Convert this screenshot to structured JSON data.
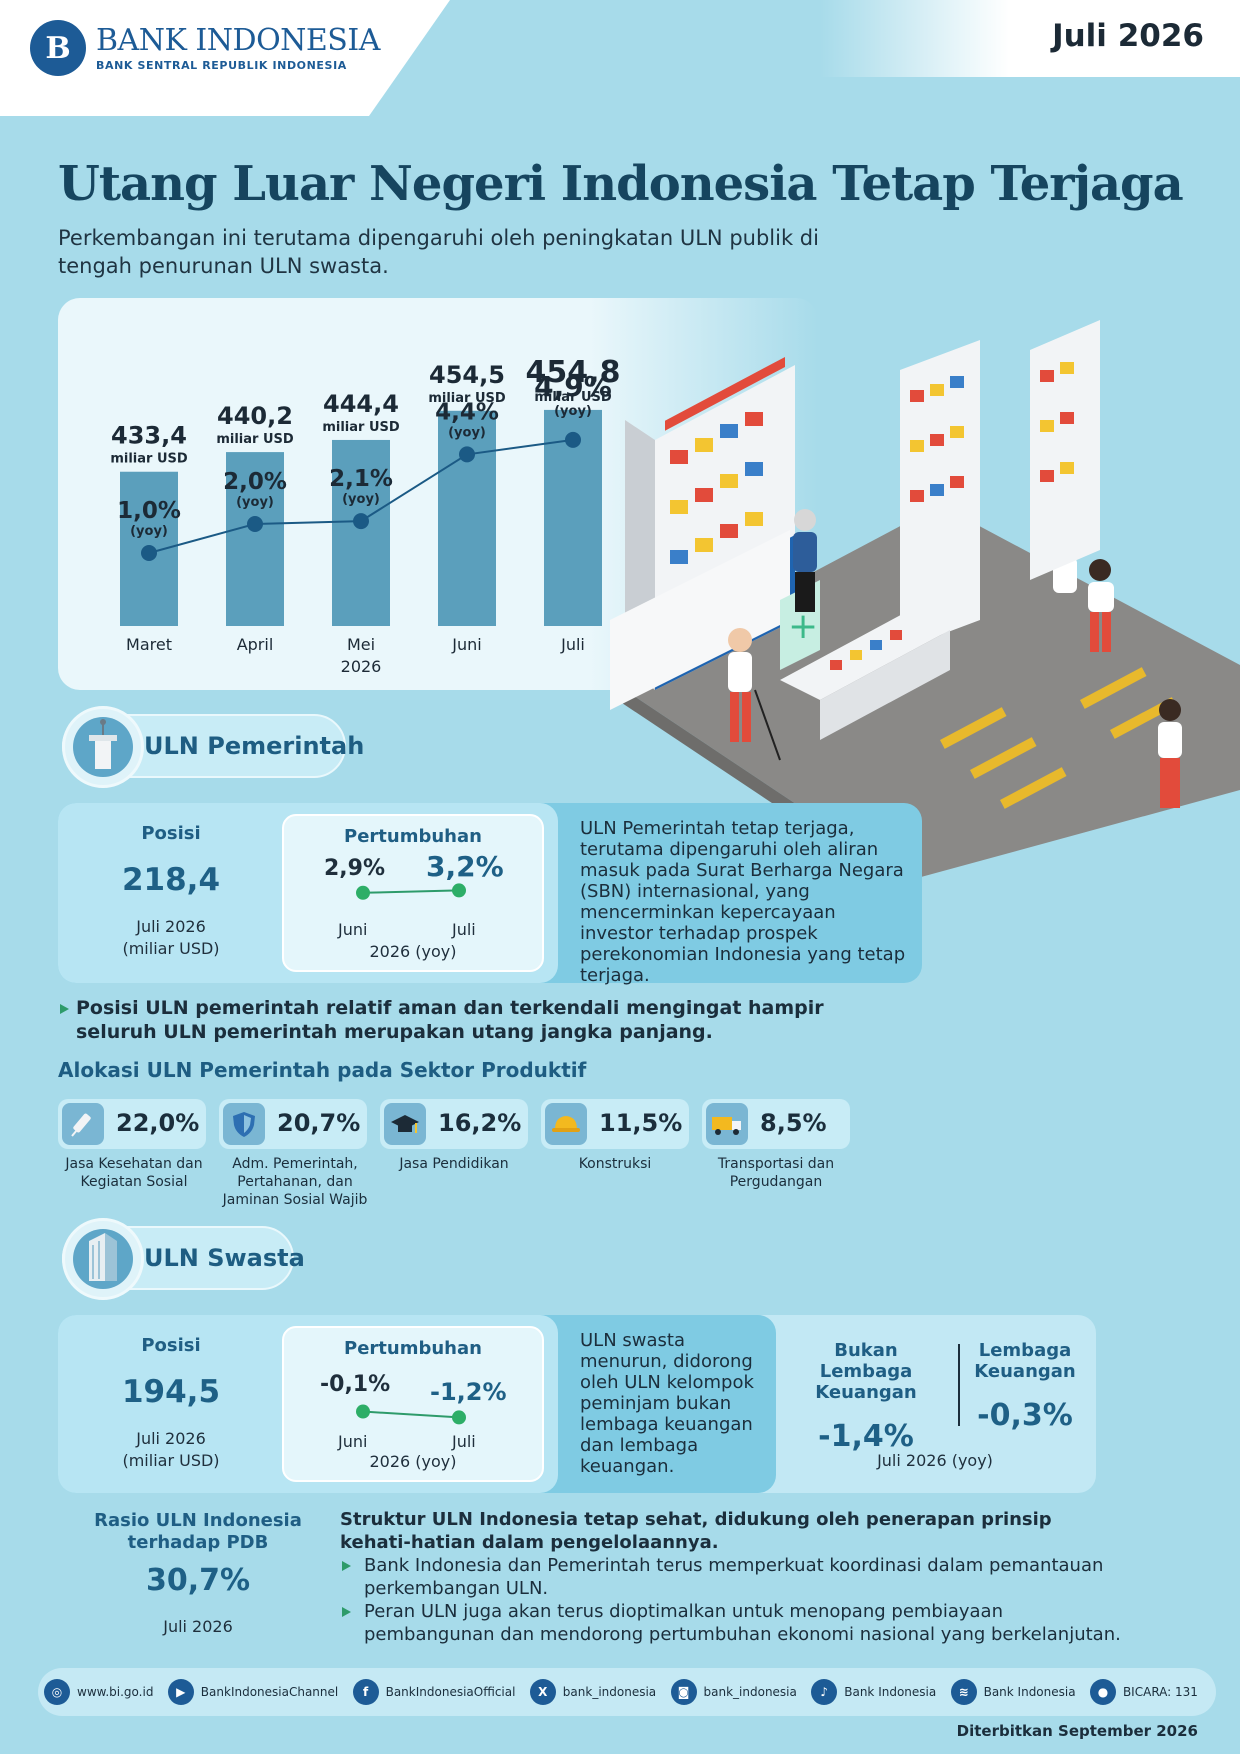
{
  "header": {
    "logo_mark": "B",
    "logo_name": "BANK INDONESIA",
    "logo_sub": "BANK SENTRAL REPUBLIK INDONESIA",
    "period": "Juli 2026"
  },
  "title": "Utang Luar Negeri Indonesia Tetap Terjaga",
  "subtitle": "Perkembangan ini terutama dipengaruhi oleh peningkatan ULN publik di tengah penurunan ULN swasta.",
  "chart_data": {
    "type": "bar",
    "categories": [
      "Maret",
      "April",
      "Mei\n2026",
      "Juni",
      "Juli"
    ],
    "value_labels": [
      "433,4",
      "440,2",
      "444,4",
      "454,5",
      "454,8"
    ],
    "values": [
      433.4,
      440.2,
      444.4,
      454.5,
      454.8
    ],
    "value_unit": "miliar USD",
    "series": [
      {
        "values": [
          433.4,
          440.2,
          444.4,
          454.5,
          454.8
        ]
      },
      {
        "values": [
          1.0,
          2.0,
          2.1,
          4.4,
          4.9
        ],
        "labels": [
          "1,0%",
          "2,0%",
          "2,1%",
          "4,4%",
          "4,9%"
        ],
        "unit": "(yoy)"
      }
    ],
    "colors": {
      "bar": "#5b9fbc",
      "line": "#1b5a85"
    }
  },
  "pemerintah": {
    "label": "ULN Pemerintah",
    "posisi_label": "Posisi",
    "posisi_value": "218,4",
    "posisi_date": "Juli 2026",
    "posisi_unit": "(miliar USD)",
    "growth_title": "Pertumbuhan",
    "growth_juni": "2,9%",
    "growth_juli": "3,2%",
    "growth_values": [
      2.9,
      3.2
    ],
    "month_juni": "Juni",
    "month_juli": "Juli",
    "growth_note": "2026 (yoy)",
    "desc": "ULN Pemerintah tetap terjaga, terutama dipengaruhi oleh aliran masuk pada Surat Berharga Negara (SBN) internasional, yang mencerminkan kepercayaan investor terhadap prospek perekonomian Indonesia yang tetap terjaga."
  },
  "bullet_main": "Posisi ULN pemerintah relatif aman dan terkendali mengingat hampir seluruh ULN pemerintah merupakan utang jangka panjang.",
  "alokasi": {
    "title": "Alokasi ULN Pemerintah pada Sektor Produktif",
    "items": [
      {
        "value": "22,0%",
        "label": "Jasa Kesehatan dan Kegiatan Sosial",
        "icon": "syringe-icon"
      },
      {
        "value": "20,7%",
        "label": "Adm. Pemerintah, Pertahanan, dan Jaminan Sosial Wajib",
        "icon": "shield-icon"
      },
      {
        "value": "16,2%",
        "label": "Jasa Pendidikan",
        "icon": "graduation-cap-icon"
      },
      {
        "value": "11,5%",
        "label": "Konstruksi",
        "icon": "hard-hat-icon"
      },
      {
        "value": "8,5%",
        "label": "Transportasi dan Pergudangan",
        "icon": "truck-icon"
      }
    ]
  },
  "swasta": {
    "label": "ULN Swasta",
    "posisi_label": "Posisi",
    "posisi_value": "194,5",
    "posisi_date": "Juli 2026",
    "posisi_unit": "(miliar USD)",
    "growth_title": "Pertumbuhan",
    "growth_juni": "-0,1%",
    "growth_juli": "-1,2%",
    "growth_values": [
      -0.1,
      -1.2
    ],
    "month_juni": "Juni",
    "month_juli": "Juli",
    "growth_note": "2026 (yoy)",
    "desc": "ULN swasta menurun, didorong oleh ULN kelompok peminjam bukan lembaga keuangan dan lembaga keuangan.",
    "bukan_lembaga_label": "Bukan Lembaga Keuangan",
    "bukan_lembaga_value": "-1,4%",
    "lembaga_label": "Lembaga Keuangan",
    "lembaga_value": "-0,3%",
    "breakdown_note": "Juli 2026 (yoy)"
  },
  "rasio": {
    "title": "Rasio ULN Indonesia terhadap PDB",
    "value": "30,7%",
    "date": "Juli 2026"
  },
  "struktur": {
    "heading": "Struktur ULN Indonesia tetap sehat, didukung oleh penerapan prinsip kehati-hatian dalam pengelolaannya.",
    "bullets": [
      "Bank Indonesia dan Pemerintah terus memperkuat koordinasi dalam pemantauan perkembangan ULN.",
      "Peran ULN juga akan terus dioptimalkan untuk menopang pembiayaan pembangunan dan mendorong pertumbuhan ekonomi nasional yang berkelanjutan."
    ]
  },
  "footer": {
    "links": [
      {
        "icon": "globe-icon",
        "glyph": "◎",
        "label": "www.bi.go.id"
      },
      {
        "icon": "youtube-icon",
        "glyph": "▶",
        "label": "BankIndonesiaChannel"
      },
      {
        "icon": "facebook-icon",
        "glyph": "f",
        "label": "BankIndonesiaOfficial"
      },
      {
        "icon": "x-icon",
        "glyph": "X",
        "label": "bank_indonesia"
      },
      {
        "icon": "instagram-icon",
        "glyph": "◙",
        "label": "bank_indonesia"
      },
      {
        "icon": "tiktok-icon",
        "glyph": "♪",
        "label": "Bank Indonesia"
      },
      {
        "icon": "spotify-icon",
        "glyph": "≋",
        "label": "Bank Indonesia"
      },
      {
        "icon": "bicara-icon",
        "glyph": "●",
        "label": "BICARA: 131"
      }
    ],
    "published": "Diterbitkan September 2026"
  }
}
